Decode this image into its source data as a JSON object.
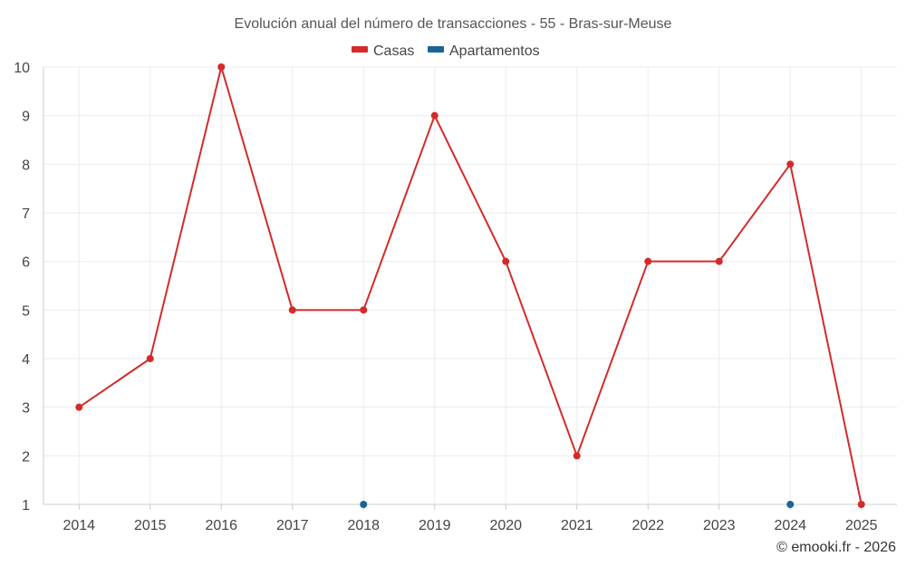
{
  "chart_data": {
    "type": "line",
    "title": "Evolución anual del número de transacciones - 55 - Bras-sur-Meuse",
    "xlabel": "",
    "ylabel": "",
    "categories": [
      "2014",
      "2015",
      "2016",
      "2017",
      "2018",
      "2019",
      "2020",
      "2021",
      "2022",
      "2023",
      "2024",
      "2025"
    ],
    "ylim": [
      1,
      10
    ],
    "yticks": [
      "1",
      "2",
      "3",
      "4",
      "5",
      "6",
      "7",
      "8",
      "9",
      "10"
    ],
    "grid": true,
    "legend_position": "top-center",
    "series": [
      {
        "name": "Casas",
        "color": "#d42a2a",
        "values": [
          3,
          4,
          10,
          5,
          5,
          9,
          6,
          2,
          6,
          6,
          8,
          1
        ]
      },
      {
        "name": "Apartamentos",
        "color": "#1a6496",
        "values": [
          null,
          null,
          null,
          null,
          1,
          null,
          null,
          null,
          null,
          null,
          1,
          null
        ]
      }
    ]
  },
  "credit": "© emooki.fr - 2026"
}
